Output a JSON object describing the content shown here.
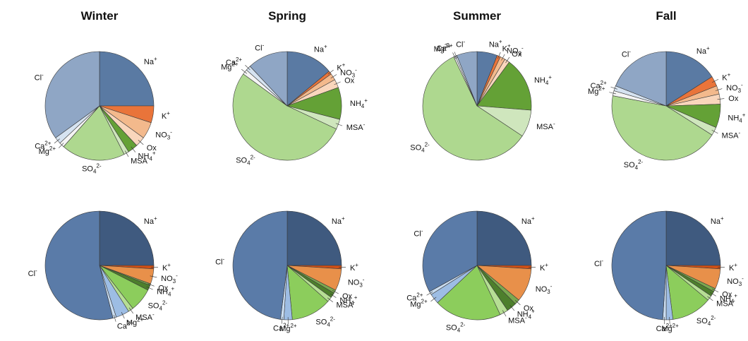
{
  "chart_data": [
    {
      "type": "pie",
      "season": "Winter",
      "row": "top",
      "slices": [
        {
          "label": "Na",
          "sup": "+",
          "sub": "",
          "value": 25.0,
          "color": "#5a7aa3"
        },
        {
          "label": "K",
          "sup": "+",
          "sub": "",
          "value": 5.0,
          "color": "#e9743a"
        },
        {
          "label": "NO",
          "sup": "-",
          "sub": "3",
          "value": 5.0,
          "color": "#f3b98c"
        },
        {
          "label": "Ox",
          "sup": "",
          "sub": "",
          "value": 3.0,
          "color": "#f9d6bc"
        },
        {
          "label": "NH",
          "sup": "+",
          "sub": "4",
          "value": 3.0,
          "color": "#64a136"
        },
        {
          "label": "MSA",
          "sup": "-",
          "sub": "",
          "value": 1.5,
          "color": "#cfe6bd"
        },
        {
          "label": "SO",
          "sup": "2-",
          "sub": "4",
          "value": 19.0,
          "color": "#aed88f"
        },
        {
          "label": "Mg",
          "sup": "2+",
          "sub": "",
          "value": 1.5,
          "color": "#f4f4f4"
        },
        {
          "label": "Ca",
          "sup": "2+",
          "sub": "",
          "value": 2.0,
          "color": "#d6e3f1"
        },
        {
          "label": "Cl",
          "sup": "-",
          "sub": "",
          "value": 35.0,
          "color": "#8fa6c5"
        }
      ]
    },
    {
      "type": "pie",
      "season": "Spring",
      "row": "top",
      "slices": [
        {
          "label": "Na",
          "sup": "+",
          "sub": "",
          "value": 14.0,
          "color": "#5a7aa3"
        },
        {
          "label": "K",
          "sup": "+",
          "sub": "",
          "value": 1.0,
          "color": "#e9743a"
        },
        {
          "label": "NO",
          "sup": "-",
          "sub": "3",
          "value": 2.0,
          "color": "#f3b98c"
        },
        {
          "label": "Ox",
          "sup": "",
          "sub": "",
          "value": 2.5,
          "color": "#f9d6bc"
        },
        {
          "label": "NH",
          "sup": "+",
          "sub": "4",
          "value": 9.5,
          "color": "#64a136"
        },
        {
          "label": "MSA",
          "sup": "-",
          "sub": "",
          "value": 3.0,
          "color": "#cfe6bd"
        },
        {
          "label": "SO",
          "sup": "2-",
          "sub": "4",
          "value": 53.0,
          "color": "#aed88f"
        },
        {
          "label": "Mg",
          "sup": "2+",
          "sub": "",
          "value": 1.5,
          "color": "#f4f4f4"
        },
        {
          "label": "Ca",
          "sup": "2+",
          "sub": "",
          "value": 1.5,
          "color": "#d6e3f1"
        },
        {
          "label": "Cl",
          "sup": "-",
          "sub": "",
          "value": 12.0,
          "color": "#8fa6c5"
        }
      ]
    },
    {
      "type": "pie",
      "season": "Summer",
      "row": "top",
      "slices": [
        {
          "label": "Na",
          "sup": "+",
          "sub": "",
          "value": 6.0,
          "color": "#5a7aa3"
        },
        {
          "label": "K",
          "sup": "+",
          "sub": "",
          "value": 1.0,
          "color": "#e9743a"
        },
        {
          "label": "NO",
          "sup": "-",
          "sub": "3",
          "value": 1.5,
          "color": "#f3b98c"
        },
        {
          "label": "Ox",
          "sup": "",
          "sub": "",
          "value": 1.5,
          "color": "#f9d6bc"
        },
        {
          "label": "NH",
          "sup": "+",
          "sub": "4",
          "value": 16.0,
          "color": "#64a136"
        },
        {
          "label": "MSA",
          "sup": "-",
          "sub": "",
          "value": 8.0,
          "color": "#cfe6bd"
        },
        {
          "label": "SO",
          "sup": "2-",
          "sub": "4",
          "value": 58.0,
          "color": "#aed88f"
        },
        {
          "label": "Mg",
          "sup": "2+",
          "sub": "",
          "value": 0.5,
          "color": "#f4f4f4"
        },
        {
          "label": "Ca",
          "sup": "2+",
          "sub": "",
          "value": 0.5,
          "color": "#d6e3f1"
        },
        {
          "label": "Cl",
          "sup": "-",
          "sub": "",
          "value": 6.0,
          "color": "#8fa6c5"
        }
      ]
    },
    {
      "type": "pie",
      "season": "Fall",
      "row": "top",
      "slices": [
        {
          "label": "Na",
          "sup": "+",
          "sub": "",
          "value": 16.0,
          "color": "#5a7aa3"
        },
        {
          "label": "K",
          "sup": "+",
          "sub": "",
          "value": 3.0,
          "color": "#e9743a"
        },
        {
          "label": "NO",
          "sup": "-",
          "sub": "3",
          "value": 2.5,
          "color": "#f3b98c"
        },
        {
          "label": "Ox",
          "sup": "",
          "sub": "",
          "value": 3.0,
          "color": "#f9d6bc"
        },
        {
          "label": "NH",
          "sup": "+",
          "sub": "4",
          "value": 7.0,
          "color": "#64a136"
        },
        {
          "label": "MSA",
          "sup": "-",
          "sub": "",
          "value": 2.5,
          "color": "#cfe6bd"
        },
        {
          "label": "SO",
          "sup": "2-",
          "sub": "4",
          "value": 44.0,
          "color": "#aed88f"
        },
        {
          "label": "Mg",
          "sup": "2+",
          "sub": "",
          "value": 1.5,
          "color": "#f4f4f4"
        },
        {
          "label": "Ca",
          "sup": "2+",
          "sub": "",
          "value": 1.5,
          "color": "#d6e3f1"
        },
        {
          "label": "Cl",
          "sup": "-",
          "sub": "",
          "value": 19.0,
          "color": "#8fa6c5"
        }
      ]
    },
    {
      "type": "pie",
      "season": "Winter",
      "row": "bottom",
      "slices": [
        {
          "label": "Na",
          "sup": "+",
          "sub": "",
          "value": 25.0,
          "color": "#3f5a7f"
        },
        {
          "label": "K",
          "sup": "+",
          "sub": "",
          "value": 1.0,
          "color": "#d14f14"
        },
        {
          "label": "NO",
          "sup": "-",
          "sub": "3",
          "value": 4.5,
          "color": "#e8904a"
        },
        {
          "label": "Ox",
          "sup": "",
          "sub": "",
          "value": 0.5,
          "color": "#7aa84f"
        },
        {
          "label": "NH",
          "sup": "+",
          "sub": "4",
          "value": 1.5,
          "color": "#4d7f2c"
        },
        {
          "label": "SO",
          "sup": "2-",
          "sub": "4",
          "value": 7.0,
          "color": "#8ccd5c"
        },
        {
          "label": "MSA",
          "sup": "-",
          "sub": "",
          "value": 1.5,
          "color": "#b6de94"
        },
        {
          "label": "Mg",
          "sup": "2+",
          "sub": "",
          "value": 4.0,
          "color": "#9dbde4"
        },
        {
          "label": "Ca",
          "sup": "2+",
          "sub": "",
          "value": 1.0,
          "color": "#c9dcf0"
        },
        {
          "label": "Cl",
          "sup": "-",
          "sub": "",
          "value": 54.0,
          "color": "#5a7ba8"
        }
      ]
    },
    {
      "type": "pie",
      "season": "Spring",
      "row": "bottom",
      "slices": [
        {
          "label": "Na",
          "sup": "+",
          "sub": "",
          "value": 25.0,
          "color": "#3f5a7f"
        },
        {
          "label": "K",
          "sup": "+",
          "sub": "",
          "value": 1.0,
          "color": "#d14f14"
        },
        {
          "label": "NO",
          "sup": "-",
          "sub": "3",
          "value": 6.5,
          "color": "#e8904a"
        },
        {
          "label": "Ox",
          "sup": "",
          "sub": "",
          "value": 1.0,
          "color": "#7aa84f"
        },
        {
          "label": "NH",
          "sup": "+",
          "sub": "4",
          "value": 1.5,
          "color": "#4d7f2c"
        },
        {
          "label": "MSA",
          "sup": "-",
          "sub": "",
          "value": 1.5,
          "color": "#b6de94"
        },
        {
          "label": "SO",
          "sup": "2-",
          "sub": "4",
          "value": 12.0,
          "color": "#8ccd5c"
        },
        {
          "label": "Mg",
          "sup": "2+",
          "sub": "",
          "value": 2.5,
          "color": "#9dbde4"
        },
        {
          "label": "Ca",
          "sup": "2+",
          "sub": "",
          "value": 1.0,
          "color": "#c9dcf0"
        },
        {
          "label": "Cl",
          "sup": "-",
          "sub": "",
          "value": 48.0,
          "color": "#5a7ba8"
        }
      ]
    },
    {
      "type": "pie",
      "season": "Summer",
      "row": "bottom",
      "slices": [
        {
          "label": "Na",
          "sup": "+",
          "sub": "",
          "value": 25.0,
          "color": "#3f5a7f"
        },
        {
          "label": "K",
          "sup": "+",
          "sub": "",
          "value": 1.0,
          "color": "#d14f14"
        },
        {
          "label": "NO",
          "sup": "-",
          "sub": "3",
          "value": 10.0,
          "color": "#e8904a"
        },
        {
          "label": "Ox",
          "sup": "",
          "sub": "",
          "value": 1.5,
          "color": "#7aa84f"
        },
        {
          "label": "NH",
          "sup": "+",
          "sub": "4",
          "value": 3.0,
          "color": "#4d7f2c"
        },
        {
          "label": "MSA",
          "sup": "-",
          "sub": "",
          "value": 2.5,
          "color": "#b6de94"
        },
        {
          "label": "SO",
          "sup": "2-",
          "sub": "4",
          "value": 20.0,
          "color": "#8ccd5c"
        },
        {
          "label": "Mg",
          "sup": "2+",
          "sub": "",
          "value": 3.0,
          "color": "#9dbde4"
        },
        {
          "label": "Ca",
          "sup": "2+",
          "sub": "",
          "value": 1.0,
          "color": "#c9dcf0"
        },
        {
          "label": "Cl",
          "sup": "-",
          "sub": "",
          "value": 33.0,
          "color": "#5a7ba8"
        }
      ]
    },
    {
      "type": "pie",
      "season": "Fall",
      "row": "bottom",
      "slices": [
        {
          "label": "Na",
          "sup": "+",
          "sub": "",
          "value": 25.0,
          "color": "#3f5a7f"
        },
        {
          "label": "K",
          "sup": "+",
          "sub": "",
          "value": 1.0,
          "color": "#d14f14"
        },
        {
          "label": "NO",
          "sup": "-",
          "sub": "3",
          "value": 6.0,
          "color": "#e8904a"
        },
        {
          "label": "Ox",
          "sup": "",
          "sub": "",
          "value": 1.0,
          "color": "#7aa84f"
        },
        {
          "label": "NH",
          "sup": "+",
          "sub": "4",
          "value": 1.5,
          "color": "#4d7f2c"
        },
        {
          "label": "MSA",
          "sup": "-",
          "sub": "",
          "value": 1.5,
          "color": "#b6de94"
        },
        {
          "label": "SO",
          "sup": "2-",
          "sub": "4",
          "value": 12.0,
          "color": "#8ccd5c"
        },
        {
          "label": "Mg",
          "sup": "2+",
          "sub": "",
          "value": 2.0,
          "color": "#9dbde4"
        },
        {
          "label": "Ca",
          "sup": "2+",
          "sub": "",
          "value": 1.0,
          "color": "#c9dcf0"
        },
        {
          "label": "Cl",
          "sup": "-",
          "sub": "",
          "value": 49.0,
          "color": "#5a7ba8"
        }
      ]
    }
  ]
}
